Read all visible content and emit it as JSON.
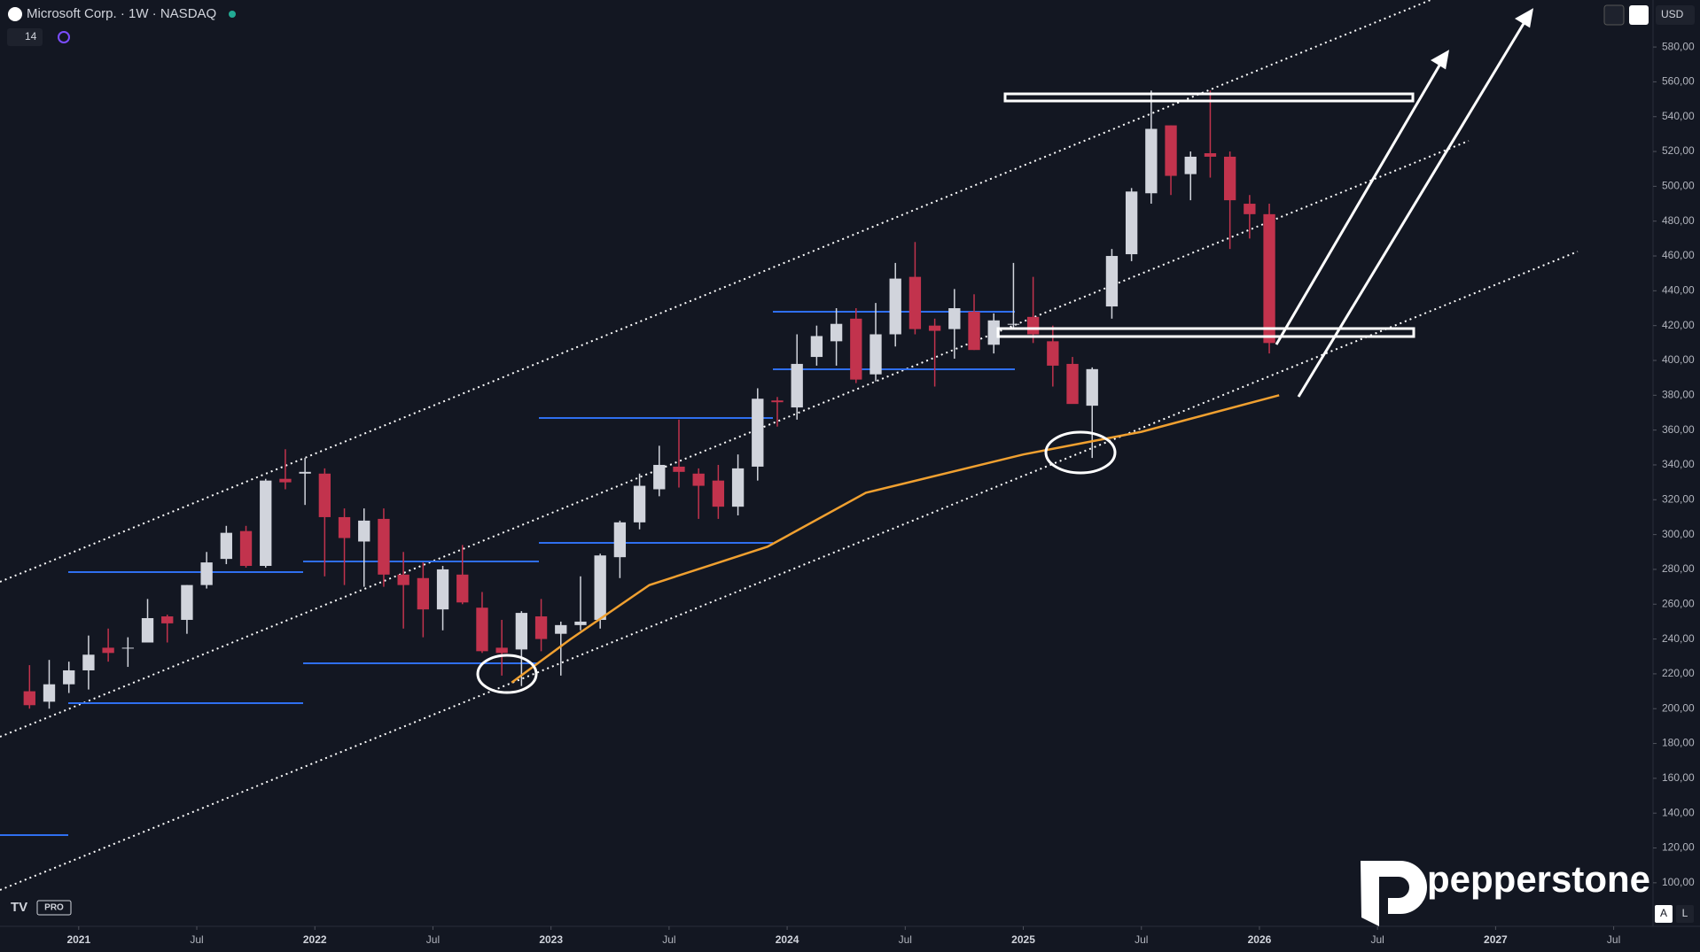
{
  "chart_data": {
    "type": "candlestick",
    "title": "Microsoft Corp. · 1W · NASDAQ",
    "x": [
      "2020-10",
      "2020-11",
      "2020-12",
      "2021-01",
      "2021-02",
      "2021-03",
      "2021-04",
      "2021-05",
      "2021-06",
      "2021-07",
      "2021-08",
      "2021-09",
      "2021-10",
      "2021-11",
      "2021-12",
      "2022-01",
      "2022-02",
      "2022-03",
      "2022-04",
      "2022-05",
      "2022-06",
      "2022-07",
      "2022-08",
      "2022-09",
      "2022-10",
      "2022-11",
      "2022-12",
      "2023-01",
      "2023-02",
      "2023-03",
      "2023-04",
      "2023-05",
      "2023-06",
      "2023-07",
      "2023-08",
      "2023-09",
      "2023-10",
      "2023-11",
      "2023-12",
      "2024-01",
      "2024-02",
      "2024-03",
      "2024-04",
      "2024-05",
      "2024-06",
      "2024-07",
      "2024-08",
      "2024-09",
      "2024-10",
      "2024-11",
      "2024-12",
      "2025-01",
      "2025-02",
      "2025-03",
      "2025-04",
      "2025-05",
      "2025-06",
      "2025-07",
      "2025-08",
      "2025-09",
      "2025-10",
      "2025-11",
      "2025-12",
      "2026-01"
    ],
    "open": [
      210,
      204,
      214,
      222,
      235,
      235,
      238,
      253,
      251,
      271,
      286,
      302,
      282,
      332,
      335,
      335,
      310,
      296,
      309,
      277,
      275,
      257,
      277,
      258,
      235,
      234,
      253,
      243,
      248,
      251,
      287,
      307,
      326,
      339,
      335,
      331,
      316,
      339,
      377,
      373,
      402,
      411,
      424,
      392,
      415,
      448,
      420,
      418,
      428,
      409,
      421,
      425,
      411,
      398,
      374,
      431,
      461,
      496,
      535,
      507,
      519,
      517,
      490,
      484
    ],
    "high": [
      225,
      228,
      227,
      242,
      246,
      241,
      263,
      254,
      271,
      290,
      305,
      305,
      332,
      349,
      344,
      338,
      315,
      315,
      315,
      290,
      284,
      282,
      294,
      267,
      251,
      256,
      263,
      250,
      276,
      289,
      308,
      335,
      351,
      366,
      338,
      340,
      346,
      384,
      379,
      415,
      420,
      430,
      430,
      433,
      456,
      468,
      424,
      441,
      438,
      427,
      456,
      448,
      420,
      402,
      396,
      464,
      499,
      555,
      535,
      520,
      555,
      520,
      495,
      490
    ],
    "low": [
      200,
      200,
      209,
      211,
      227,
      224,
      238,
      238,
      243,
      269,
      283,
      281,
      281,
      326,
      317,
      276,
      271,
      270,
      270,
      246,
      241,
      245,
      260,
      232,
      219,
      213,
      233,
      219,
      245,
      246,
      275,
      303,
      322,
      327,
      309,
      309,
      311,
      331,
      362,
      366,
      397,
      397,
      387,
      388,
      408,
      415,
      385,
      401,
      406,
      404,
      418,
      410,
      385,
      376,
      344,
      424,
      457,
      490,
      495,
      492,
      505,
      464,
      470,
      404
    ],
    "close": [
      202,
      214,
      222,
      231,
      232,
      235,
      252,
      249,
      271,
      284,
      301,
      282,
      331,
      330,
      336,
      310,
      298,
      308,
      277,
      271,
      257,
      280,
      261,
      233,
      232,
      255,
      240,
      248,
      250,
      288,
      307,
      328,
      340,
      336,
      328,
      316,
      338,
      378,
      376,
      398,
      414,
      421,
      389,
      415,
      447,
      418,
      417,
      430,
      406,
      423,
      421,
      415,
      397,
      375,
      395,
      460,
      497,
      533,
      506,
      517,
      517,
      492,
      484,
      410
    ],
    "up_color": "#d1d4dc",
    "down_color": "#c2334d",
    "ma": {
      "color": "#f0a030",
      "x": [
        "2022-11",
        "2023-02",
        "2023-06",
        "2023-12",
        "2024-05",
        "2025-01",
        "2025-07",
        "2026-02"
      ],
      "values": [
        215,
        240,
        271,
        293,
        324,
        346,
        359,
        380
      ]
    },
    "xlim": [
      "2020-09",
      "2027-09"
    ],
    "xticks": [
      {
        "value": "2021-01",
        "label": "2021"
      },
      {
        "value": "2021-07",
        "label": "Jul"
      },
      {
        "value": "2022-01",
        "label": "2022"
      },
      {
        "value": "2022-07",
        "label": "Jul"
      },
      {
        "value": "2023-01",
        "label": "2023"
      },
      {
        "value": "2023-07",
        "label": "Jul"
      },
      {
        "value": "2024-01",
        "label": "2024"
      },
      {
        "value": "2024-07",
        "label": "Jul"
      },
      {
        "value": "2025-01",
        "label": "2025"
      },
      {
        "value": "2025-07",
        "label": "Jul"
      },
      {
        "value": "2026-01",
        "label": "2026"
      },
      {
        "value": "2026-07",
        "label": "Jul"
      },
      {
        "value": "2027-01",
        "label": "2027"
      },
      {
        "value": "2027-07",
        "label": "Jul"
      }
    ],
    "ylim": [
      75,
      607
    ],
    "yticks": [
      {
        "value": 100,
        "label": "100,00"
      },
      {
        "value": 120,
        "label": "120,00"
      },
      {
        "value": 140,
        "label": "140,00"
      },
      {
        "value": 160,
        "label": "160,00"
      },
      {
        "value": 180,
        "label": "180,00"
      },
      {
        "value": 200,
        "label": "200,00"
      },
      {
        "value": 220,
        "label": "220,00"
      },
      {
        "value": 240,
        "label": "240,00"
      },
      {
        "value": 260,
        "label": "260,00"
      },
      {
        "value": 280,
        "label": "280,00"
      },
      {
        "value": 300,
        "label": "300,00"
      },
      {
        "value": 320,
        "label": "320,00"
      },
      {
        "value": 340,
        "label": "340,00"
      },
      {
        "value": 360,
        "label": "360,00"
      },
      {
        "value": 380,
        "label": "380,00"
      },
      {
        "value": 400,
        "label": "400,00"
      },
      {
        "value": 420,
        "label": "420,00"
      },
      {
        "value": 440,
        "label": "440,00"
      },
      {
        "value": 460,
        "label": "460,00"
      },
      {
        "value": 480,
        "label": "480,00"
      },
      {
        "value": 500,
        "label": "500,00"
      },
      {
        "value": 520,
        "label": "520,00"
      },
      {
        "value": 540,
        "label": "540,00"
      },
      {
        "value": 560,
        "label": "560,00"
      },
      {
        "value": 580,
        "label": "580,00"
      }
    ],
    "grid": false
  },
  "ui": {
    "indicator": "14",
    "currency": "USD",
    "brand": "pepperstone",
    "badge": "PRO",
    "scale_auto": "A",
    "scale_log": "L"
  }
}
